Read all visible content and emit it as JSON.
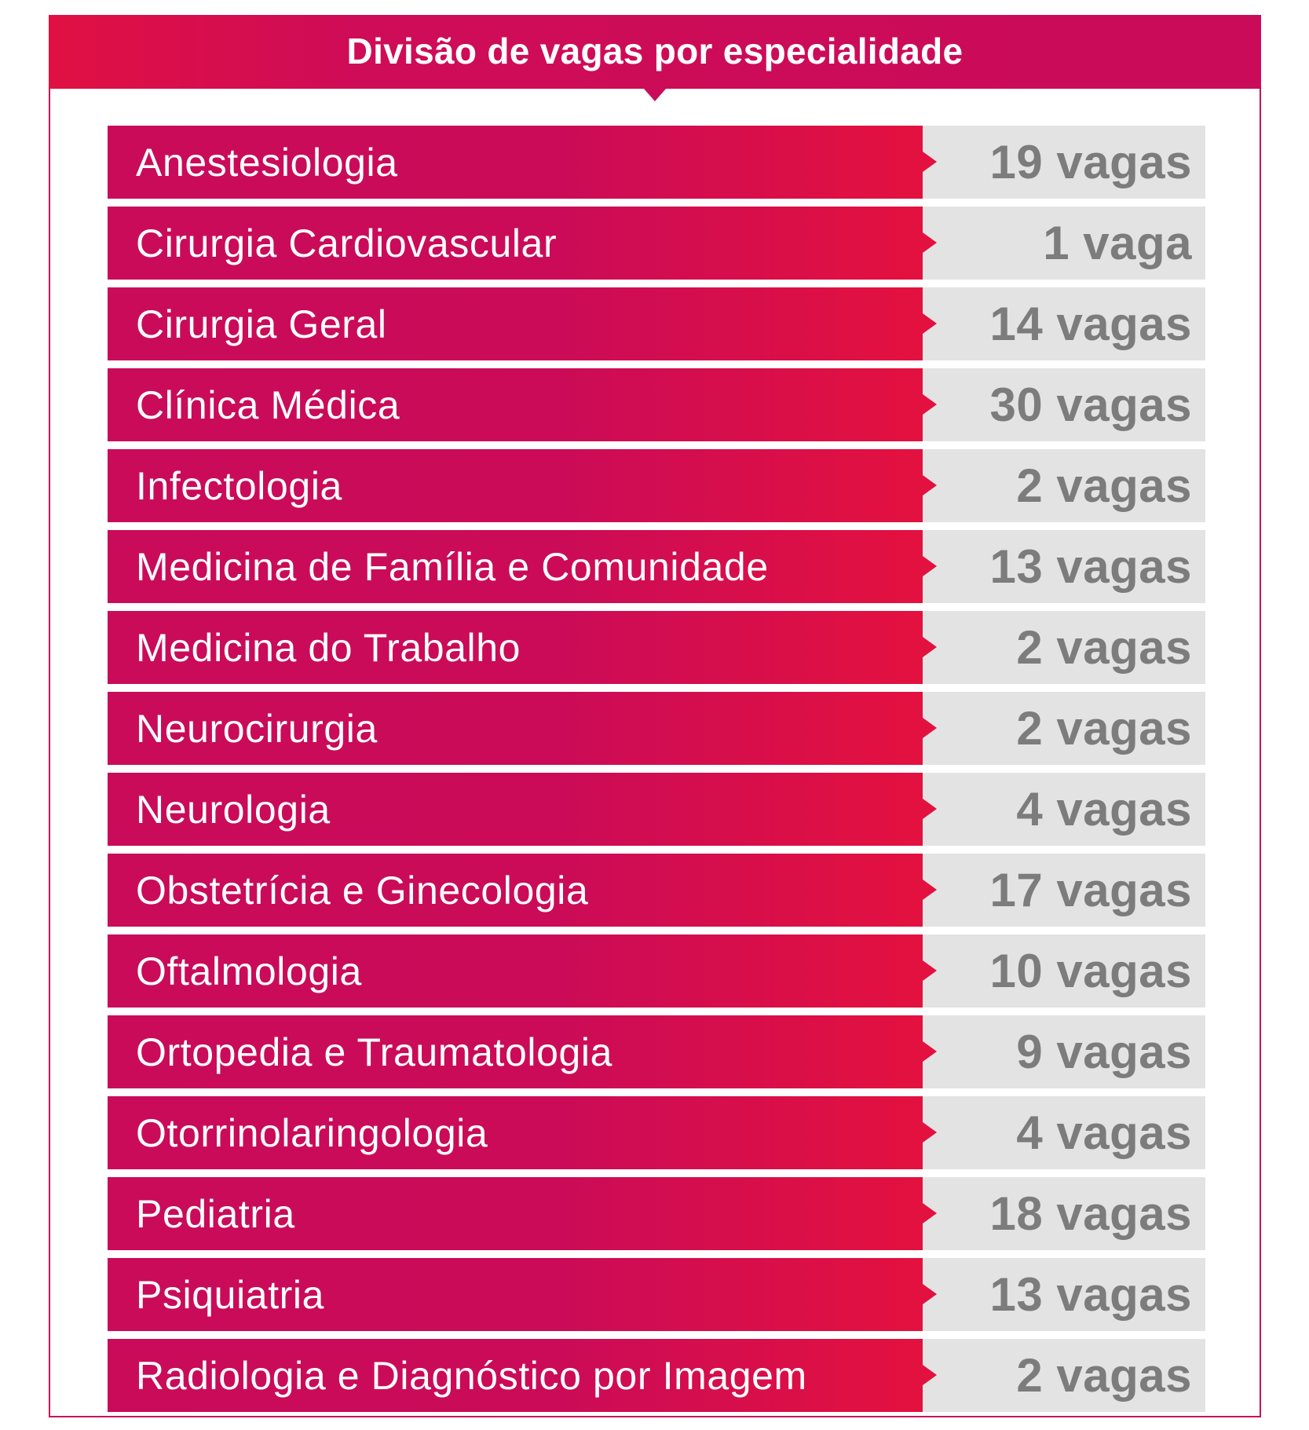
{
  "header": {
    "title": "Divisão de vagas por especialidade"
  },
  "colors": {
    "accent": "#c90b5a",
    "accent_light": "#e3113f",
    "value_background": "#e3e3e3",
    "value_text": "#7c7c7c"
  },
  "rows": [
    {
      "specialty": "Anestesiologia",
      "vacancies": "19 vagas"
    },
    {
      "specialty": "Cirurgia Cardiovascular",
      "vacancies": "1 vaga"
    },
    {
      "specialty": "Cirurgia Geral",
      "vacancies": "14 vagas"
    },
    {
      "specialty": "Clínica Médica",
      "vacancies": "30 vagas"
    },
    {
      "specialty": "Infectologia",
      "vacancies": "2 vagas"
    },
    {
      "specialty": "Medicina de Família e Comunidade",
      "vacancies": "13 vagas"
    },
    {
      "specialty": "Medicina do Trabalho",
      "vacancies": "2 vagas"
    },
    {
      "specialty": "Neurocirurgia",
      "vacancies": "2 vagas"
    },
    {
      "specialty": "Neurologia",
      "vacancies": "4 vagas"
    },
    {
      "specialty": "Obstetrícia e Ginecologia",
      "vacancies": "17 vagas"
    },
    {
      "specialty": "Oftalmologia",
      "vacancies": "10 vagas"
    },
    {
      "specialty": "Ortopedia e Traumatologia",
      "vacancies": "9 vagas"
    },
    {
      "specialty": "Otorrinolaringologia",
      "vacancies": "4 vagas"
    },
    {
      "specialty": "Pediatria",
      "vacancies": "18 vagas"
    },
    {
      "specialty": "Psiquiatria",
      "vacancies": "13 vagas"
    },
    {
      "specialty": "Radiologia e Diagnóstico por Imagem",
      "vacancies": "2 vagas"
    }
  ]
}
